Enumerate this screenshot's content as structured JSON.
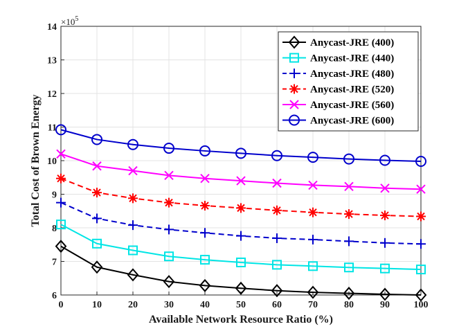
{
  "chart_data": {
    "type": "line",
    "title": "",
    "xlabel": "Available Network Resource Ratio (%)",
    "ylabel": "Total Cost of Brown Energy",
    "y_multiplier": "×10",
    "y_multiplier_exp": "5",
    "x": [
      0,
      10,
      20,
      30,
      40,
      50,
      60,
      70,
      80,
      90,
      100
    ],
    "xlim": [
      0,
      100
    ],
    "ylim": [
      6,
      14
    ],
    "xticks": [
      0,
      10,
      20,
      30,
      40,
      50,
      60,
      70,
      80,
      90,
      100
    ],
    "yticks": [
      6,
      7,
      8,
      9,
      10,
      11,
      12,
      13,
      14
    ],
    "grid": true,
    "legend_position": "top-right",
    "series": [
      {
        "name": "Anycast-JRE (400)",
        "color": "#000000",
        "marker": "diamond",
        "dash": "solid",
        "values": [
          7.45,
          6.83,
          6.6,
          6.4,
          6.28,
          6.2,
          6.13,
          6.08,
          6.05,
          6.02,
          6.0
        ]
      },
      {
        "name": "Anycast-JRE (440)",
        "color": "#00e5e5",
        "marker": "square",
        "dash": "solid",
        "values": [
          8.1,
          7.53,
          7.33,
          7.15,
          7.05,
          6.97,
          6.9,
          6.86,
          6.82,
          6.79,
          6.76
        ]
      },
      {
        "name": "Anycast-JRE (480)",
        "color": "#0000cc",
        "marker": "plus",
        "dash": "dashed",
        "values": [
          8.75,
          8.28,
          8.08,
          7.95,
          7.85,
          7.76,
          7.69,
          7.65,
          7.6,
          7.55,
          7.52
        ]
      },
      {
        "name": "Anycast-JRE (520)",
        "color": "#ff0000",
        "marker": "asterisk",
        "dash": "dashed",
        "values": [
          9.47,
          9.05,
          8.88,
          8.75,
          8.66,
          8.59,
          8.52,
          8.46,
          8.41,
          8.37,
          8.34
        ]
      },
      {
        "name": "Anycast-JRE (560)",
        "color": "#ff00ff",
        "marker": "x",
        "dash": "solid",
        "values": [
          10.2,
          9.84,
          9.7,
          9.56,
          9.47,
          9.4,
          9.33,
          9.27,
          9.23,
          9.18,
          9.15
        ]
      },
      {
        "name": "Anycast-JRE (600)",
        "color": "#0000cc",
        "marker": "circle",
        "dash": "solid",
        "values": [
          10.92,
          10.63,
          10.48,
          10.37,
          10.29,
          10.22,
          10.15,
          10.1,
          10.05,
          10.01,
          9.98
        ]
      }
    ]
  }
}
